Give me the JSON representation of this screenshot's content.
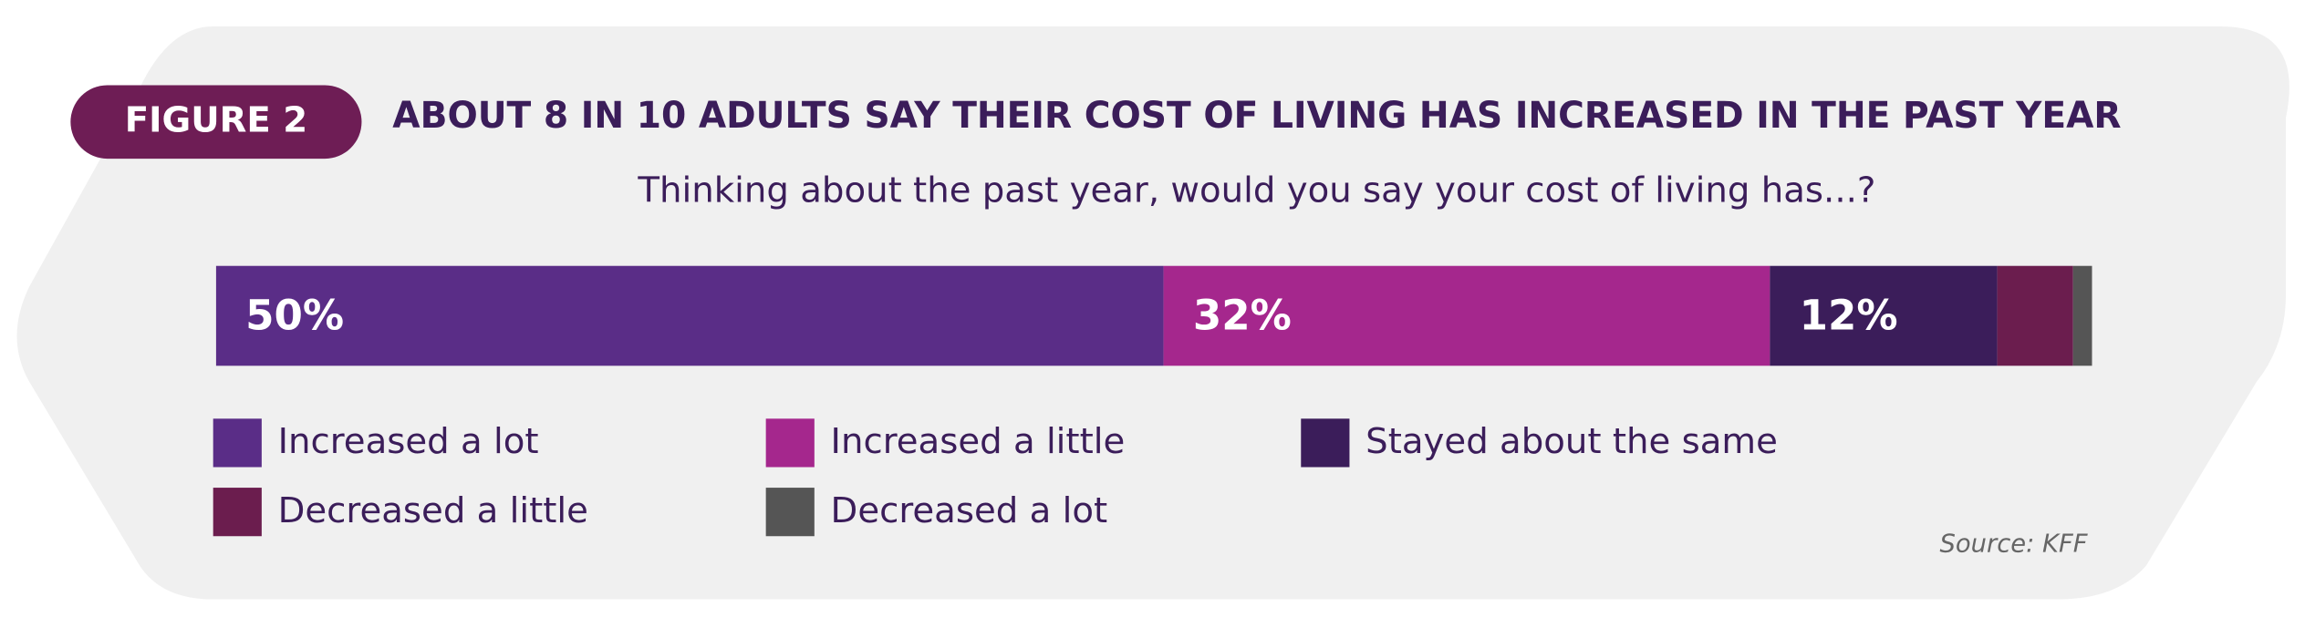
{
  "chart_data": {
    "type": "stacked-bar-horizontal",
    "badge": "FIGURE 2",
    "title": "ABOUT 8 IN 10 ADULTS SAY THEIR COST OF LIVING HAS INCREASED IN THE PAST YEAR",
    "subtitle": "Thinking about the past year, would you say your cost of living has...?",
    "source": "Source: KFF",
    "categories": [
      null
    ],
    "xlim": [
      0,
      100
    ],
    "series": [
      {
        "name": "Increased a lot",
        "color": "#5a2d87",
        "values": [
          50
        ],
        "value_labels": [
          "50%"
        ]
      },
      {
        "name": "Increased a little",
        "color": "#a5278d",
        "values": [
          32
        ],
        "value_labels": [
          "32%"
        ]
      },
      {
        "name": "Stayed about the same",
        "color": "#3b1d5a",
        "values": [
          12
        ],
        "value_labels": [
          "12%"
        ]
      },
      {
        "name": "Decreased a little",
        "color": "#6b1d4e",
        "values": [
          4
        ]
      },
      {
        "name": "Decreased a lot",
        "color": "#555555",
        "values": [
          1
        ]
      }
    ]
  }
}
